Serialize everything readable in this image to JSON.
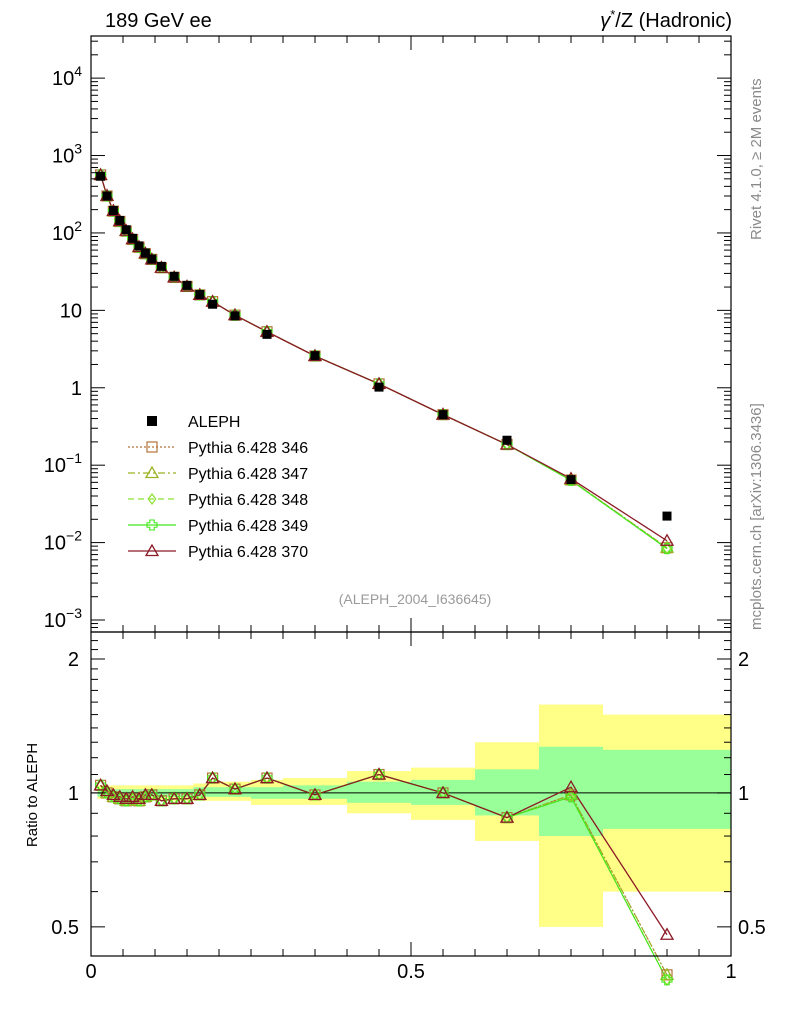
{
  "header": {
    "left": "189 GeV ee",
    "right_base": "γ",
    "right_sup": "*",
    "right_rest": "/Z (Hadronic)"
  },
  "side_labels": {
    "rivet": "Rivet 4.1.0, ≥ 2M events",
    "mcplots": "mcplots.cern.ch [arXiv:1306.3436]"
  },
  "watermark": "(ALEPH_2004_I636645)",
  "colors": {
    "data": "#000000",
    "p346": "#b5733b",
    "p347": "#9cb222",
    "p348": "#8be22e",
    "p349": "#44e61c",
    "p370": "#8b1a26",
    "band_inner": "#99ff99",
    "band_outer": "#ffff88"
  },
  "chart_data": [
    {
      "type": "line",
      "panel": "main",
      "yscale": "log",
      "xlim": [
        0,
        1
      ],
      "ylim": [
        0.0007,
        35000
      ],
      "ytick_labels": [
        {
          "base": "10",
          "exp": "4",
          "value": 10000
        },
        {
          "base": "10",
          "exp": "3",
          "value": 1000
        },
        {
          "base": "10",
          "exp": "2",
          "value": 100
        },
        {
          "base": "10",
          "exp": "",
          "value": 10
        },
        {
          "base": "1",
          "exp": "",
          "value": 1
        },
        {
          "base": "10",
          "exp": "−1",
          "value": 0.1
        },
        {
          "base": "10",
          "exp": "−2",
          "value": 0.01
        },
        {
          "base": "10",
          "exp": "−3",
          "value": 0.001
        }
      ],
      "x": [
        0.015,
        0.025,
        0.035,
        0.045,
        0.055,
        0.065,
        0.075,
        0.085,
        0.095,
        0.11,
        0.13,
        0.15,
        0.17,
        0.19,
        0.225,
        0.275,
        0.35,
        0.45,
        0.55,
        0.65,
        0.75,
        0.9
      ],
      "data_series": {
        "name": "ALEPH",
        "values": [
          540,
          300,
          195,
          145,
          110,
          85,
          68,
          55,
          46,
          37,
          27.5,
          21,
          16,
          12,
          8.5,
          4.9,
          2.6,
          1.02,
          0.45,
          0.21,
          0.065,
          0.022
        ]
      },
      "legend": [
        {
          "key": "data",
          "label": "ALEPH",
          "marker": "square",
          "dash": ""
        },
        {
          "key": "p346",
          "label": "Pythia 6.428 346",
          "marker": "open-square",
          "dash": "2,2"
        },
        {
          "key": "p347",
          "label": "Pythia 6.428 347",
          "marker": "triangle",
          "dash": "7,3,2,3"
        },
        {
          "key": "p348",
          "label": "Pythia 6.428 348",
          "marker": "diamond",
          "dash": "6,4"
        },
        {
          "key": "p349",
          "label": "Pythia 6.428 349",
          "marker": "cross",
          "dash": ""
        },
        {
          "key": "p370",
          "label": "Pythia 6.428 370",
          "marker": "triangle",
          "dash": ""
        }
      ],
      "series": [
        {
          "key": "p346",
          "name": "Pythia 6.428 346",
          "ratio": [
            1.04,
            1.0,
            0.98,
            0.97,
            0.96,
            0.97,
            0.96,
            0.98,
            0.99,
            0.96,
            0.97,
            0.97,
            0.99,
            1.08,
            1.02,
            1.08,
            0.99,
            1.1,
            1.0,
            0.88,
            0.99,
            0.39
          ]
        },
        {
          "key": "p347",
          "name": "Pythia 6.428 347",
          "ratio": [
            1.04,
            1.0,
            0.98,
            0.97,
            0.96,
            0.97,
            0.96,
            0.98,
            0.99,
            0.96,
            0.97,
            0.97,
            0.99,
            1.08,
            1.02,
            1.08,
            0.99,
            1.1,
            1.0,
            0.88,
            0.99,
            0.39
          ]
        },
        {
          "key": "p348",
          "name": "Pythia 6.428 348",
          "ratio": [
            1.04,
            1.0,
            0.98,
            0.97,
            0.96,
            0.97,
            0.96,
            0.98,
            0.99,
            0.96,
            0.97,
            0.97,
            0.99,
            1.08,
            1.02,
            1.08,
            0.99,
            1.1,
            1.0,
            0.88,
            0.98,
            0.38
          ]
        },
        {
          "key": "p349",
          "name": "Pythia 6.428 349",
          "ratio": [
            1.04,
            1.0,
            0.98,
            0.97,
            0.96,
            0.97,
            0.96,
            0.98,
            0.99,
            0.96,
            0.97,
            0.97,
            0.99,
            1.08,
            1.02,
            1.08,
            0.99,
            1.1,
            1.0,
            0.88,
            0.98,
            0.38
          ]
        },
        {
          "key": "p370",
          "name": "Pythia 6.428 370",
          "ratio": [
            1.04,
            1.01,
            0.99,
            0.98,
            0.97,
            0.98,
            0.97,
            0.99,
            0.99,
            0.96,
            0.97,
            0.97,
            0.99,
            1.08,
            1.02,
            1.08,
            0.99,
            1.1,
            1.0,
            0.88,
            1.03,
            0.48
          ]
        }
      ]
    },
    {
      "type": "line",
      "panel": "ratio",
      "yscale": "log",
      "ylabel": "Ratio to ALEPH",
      "xlim": [
        0,
        1
      ],
      "ylim": [
        0.43,
        2.3
      ],
      "yticks": [
        {
          "label": "2",
          "value": 2
        },
        {
          "label": "1",
          "value": 1
        },
        {
          "label": "0.5",
          "value": 0.5
        }
      ],
      "xticks": [
        {
          "label": "0",
          "value": 0
        },
        {
          "label": "0.5",
          "value": 0.5
        },
        {
          "label": "1",
          "value": 1
        }
      ],
      "uncertainty_bins": [
        {
          "x0": 0.01,
          "x1": 0.02,
          "inner": [
            0.98,
            1.02
          ],
          "outer": [
            0.97,
            1.04
          ]
        },
        {
          "x0": 0.02,
          "x1": 0.03,
          "inner": [
            0.98,
            1.02
          ],
          "outer": [
            0.97,
            1.04
          ]
        },
        {
          "x0": 0.03,
          "x1": 0.04,
          "inner": [
            0.98,
            1.02
          ],
          "outer": [
            0.97,
            1.04
          ]
        },
        {
          "x0": 0.04,
          "x1": 0.05,
          "inner": [
            0.98,
            1.02
          ],
          "outer": [
            0.97,
            1.04
          ]
        },
        {
          "x0": 0.05,
          "x1": 0.06,
          "inner": [
            0.98,
            1.02
          ],
          "outer": [
            0.97,
            1.04
          ]
        },
        {
          "x0": 0.06,
          "x1": 0.07,
          "inner": [
            0.98,
            1.02
          ],
          "outer": [
            0.96,
            1.04
          ]
        },
        {
          "x0": 0.07,
          "x1": 0.08,
          "inner": [
            0.98,
            1.02
          ],
          "outer": [
            0.96,
            1.04
          ]
        },
        {
          "x0": 0.08,
          "x1": 0.09,
          "inner": [
            0.98,
            1.02
          ],
          "outer": [
            0.96,
            1.04
          ]
        },
        {
          "x0": 0.09,
          "x1": 0.1,
          "inner": [
            0.98,
            1.02
          ],
          "outer": [
            0.96,
            1.04
          ]
        },
        {
          "x0": 0.1,
          "x1": 0.12,
          "inner": [
            0.98,
            1.02
          ],
          "outer": [
            0.96,
            1.04
          ]
        },
        {
          "x0": 0.12,
          "x1": 0.14,
          "inner": [
            0.98,
            1.02
          ],
          "outer": [
            0.96,
            1.04
          ]
        },
        {
          "x0": 0.14,
          "x1": 0.16,
          "inner": [
            0.98,
            1.02
          ],
          "outer": [
            0.96,
            1.04
          ]
        },
        {
          "x0": 0.16,
          "x1": 0.18,
          "inner": [
            0.98,
            1.03
          ],
          "outer": [
            0.96,
            1.05
          ]
        },
        {
          "x0": 0.18,
          "x1": 0.2,
          "inner": [
            0.98,
            1.03
          ],
          "outer": [
            0.96,
            1.05
          ]
        },
        {
          "x0": 0.2,
          "x1": 0.25,
          "inner": [
            0.98,
            1.03
          ],
          "outer": [
            0.96,
            1.06
          ]
        },
        {
          "x0": 0.25,
          "x1": 0.3,
          "inner": [
            0.97,
            1.03
          ],
          "outer": [
            0.94,
            1.07
          ]
        },
        {
          "x0": 0.3,
          "x1": 0.4,
          "inner": [
            0.97,
            1.04
          ],
          "outer": [
            0.94,
            1.08
          ]
        },
        {
          "x0": 0.4,
          "x1": 0.5,
          "inner": [
            0.95,
            1.06
          ],
          "outer": [
            0.9,
            1.12
          ]
        },
        {
          "x0": 0.5,
          "x1": 0.6,
          "inner": [
            0.94,
            1.07
          ],
          "outer": [
            0.87,
            1.14
          ]
        },
        {
          "x0": 0.6,
          "x1": 0.7,
          "inner": [
            0.89,
            1.13
          ],
          "outer": [
            0.78,
            1.3
          ]
        },
        {
          "x0": 0.7,
          "x1": 0.8,
          "inner": [
            0.8,
            1.27
          ],
          "outer": [
            0.5,
            1.58
          ]
        },
        {
          "x0": 0.8,
          "x1": 1.0,
          "inner": [
            0.83,
            1.25
          ],
          "outer": [
            0.6,
            1.5
          ]
        }
      ]
    }
  ]
}
